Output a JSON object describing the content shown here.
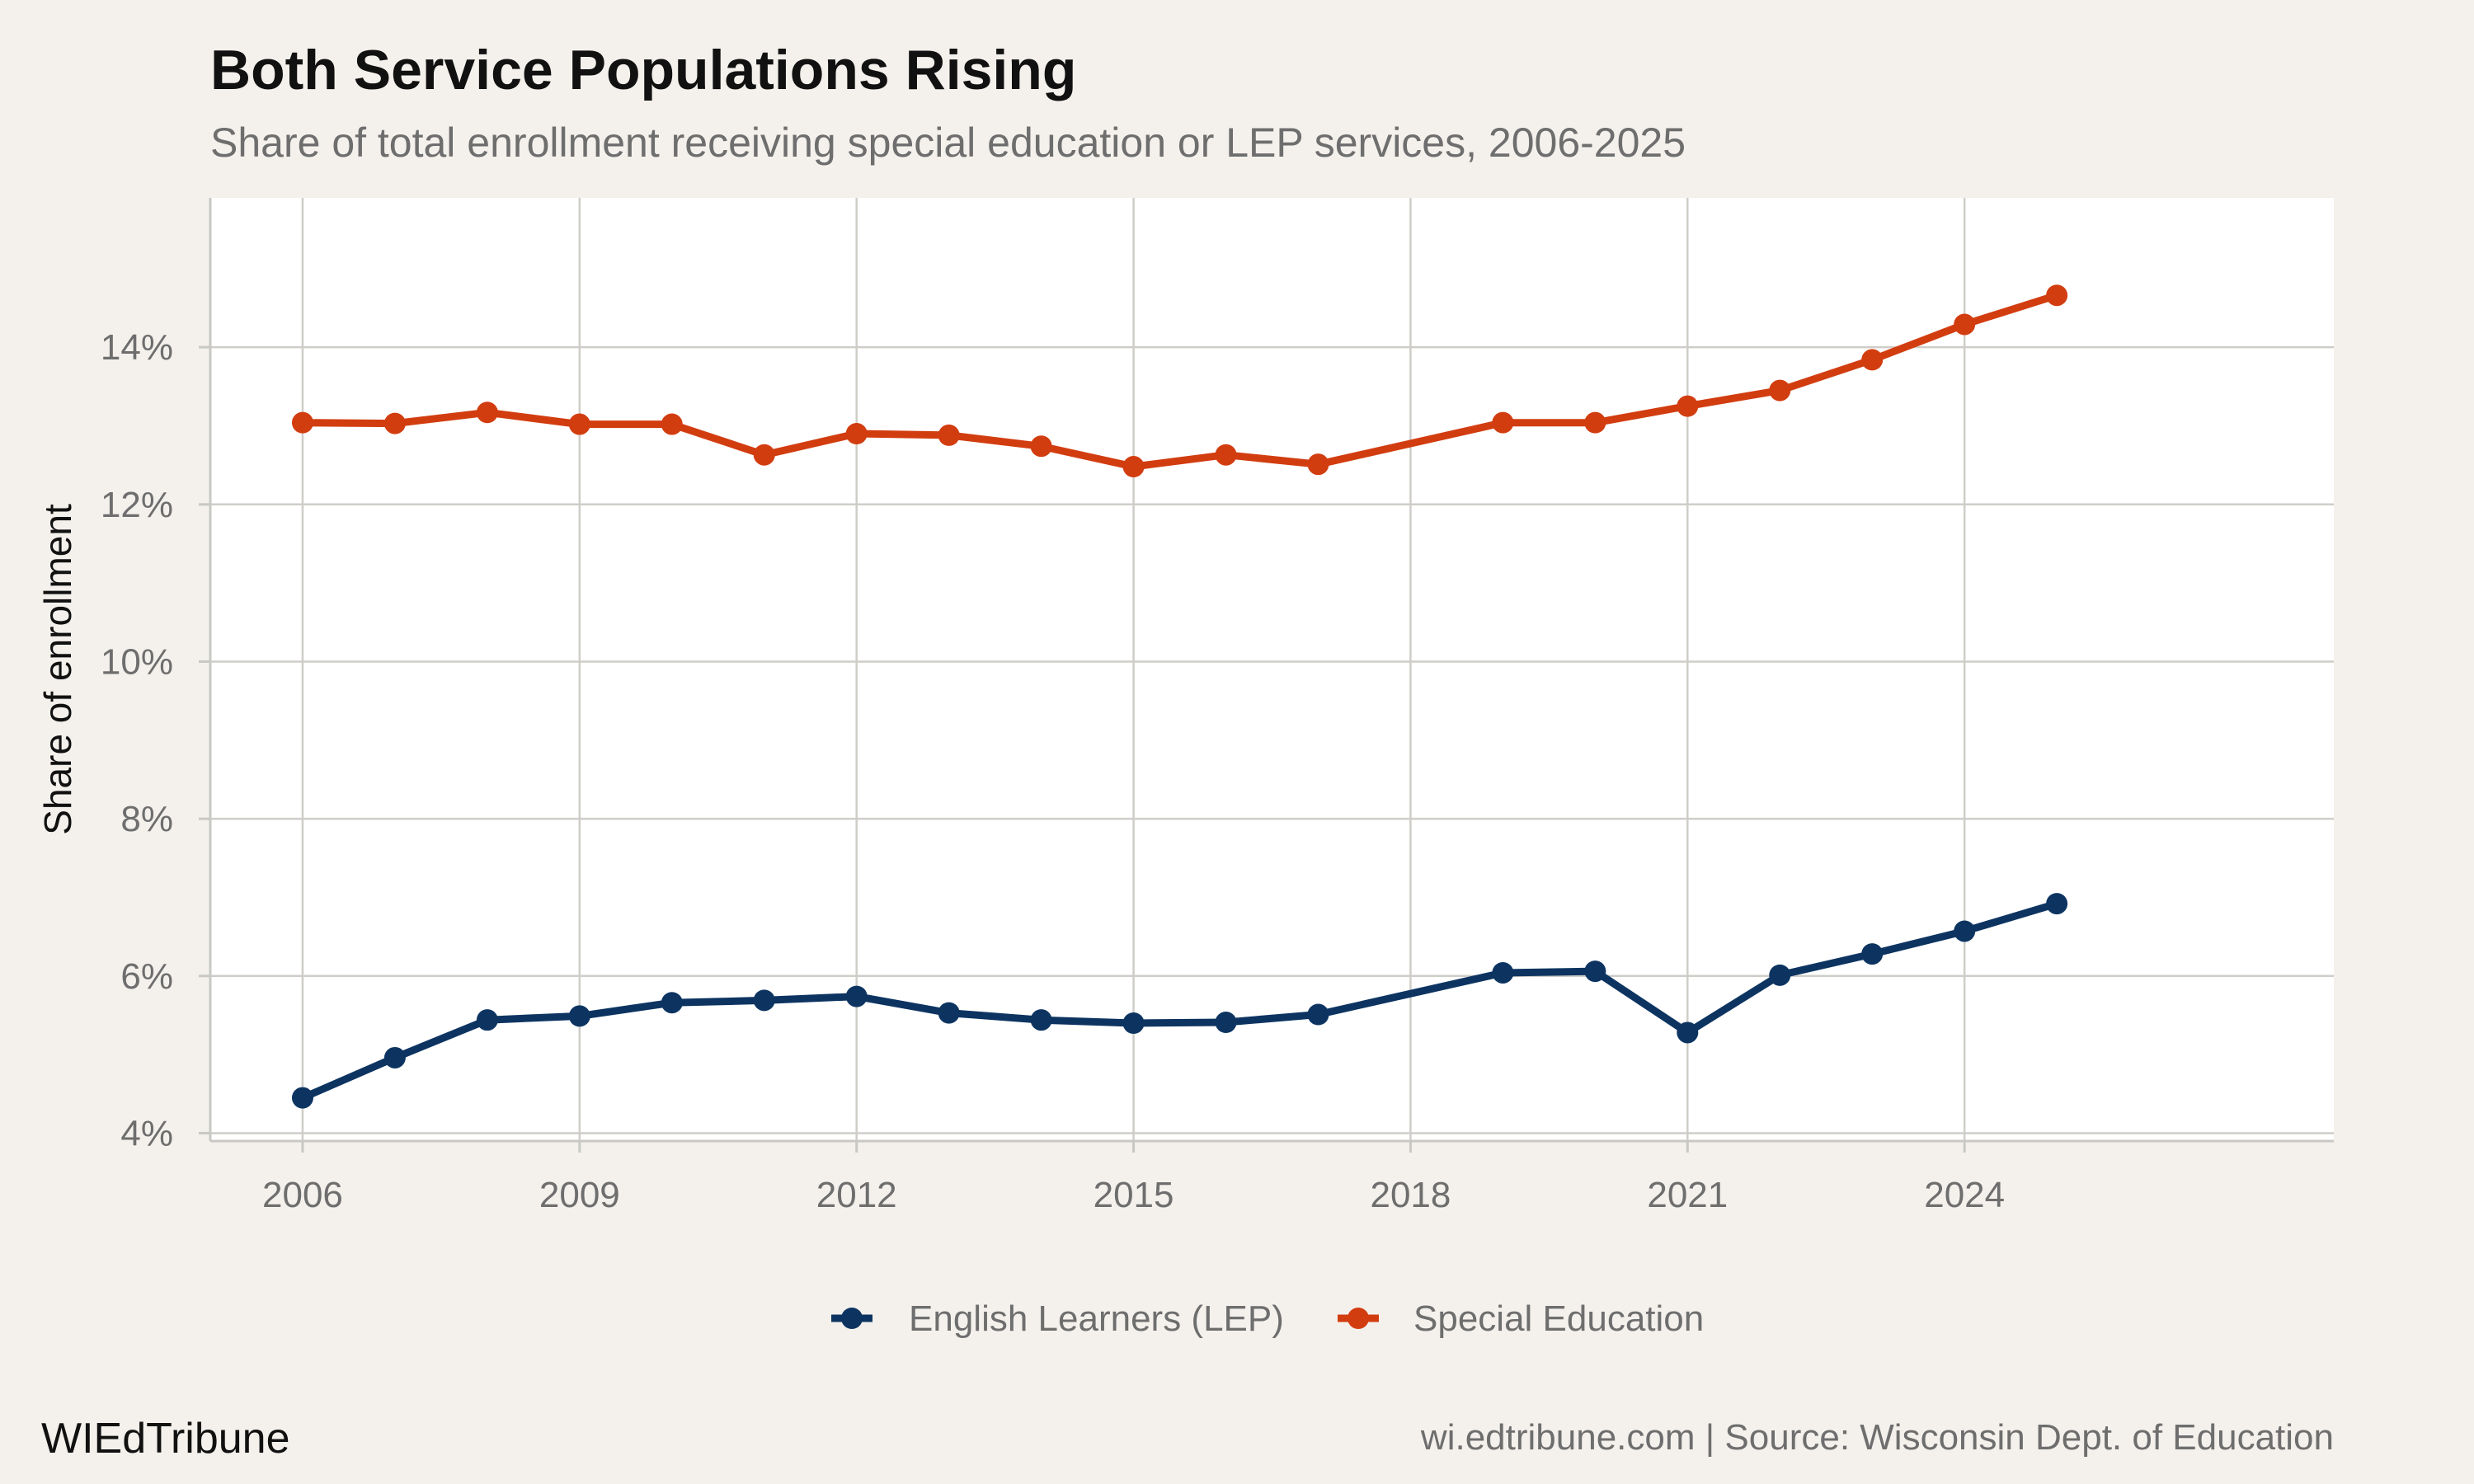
{
  "chart_data": {
    "type": "line",
    "title": "Both Service Populations Rising",
    "subtitle": "Share of total enrollment receiving special education or LEP services, 2006-2025",
    "ylabel": "Share of enrollment",
    "xlabel": "",
    "xlim": [
      2005,
      2028
    ],
    "ylim": [
      3.9,
      15.9
    ],
    "x_ticks": [
      2006,
      2009,
      2012,
      2015,
      2018,
      2021,
      2024
    ],
    "y_ticks": [
      4,
      6,
      8,
      10,
      12,
      14
    ],
    "y_tick_labels": [
      "4%",
      "6%",
      "8%",
      "10%",
      "12%",
      "14%"
    ],
    "grid": true,
    "legend_position": "bottom",
    "series": [
      {
        "name": "English Learners (LEP)",
        "color": "#0d3461",
        "x": [
          2006,
          2007,
          2008,
          2009,
          2010,
          2011,
          2012,
          2013,
          2014,
          2015,
          2016,
          2017,
          2019,
          2020,
          2021,
          2022,
          2023,
          2024,
          2025
        ],
        "values": [
          4.45,
          4.96,
          5.44,
          5.49,
          5.66,
          5.69,
          5.74,
          5.53,
          5.44,
          5.4,
          5.41,
          5.51,
          6.04,
          6.06,
          5.28,
          6.01,
          6.28,
          6.57,
          6.92
        ]
      },
      {
        "name": "Special Education",
        "color": "#d23d10",
        "x": [
          2006,
          2007,
          2008,
          2009,
          2010,
          2011,
          2012,
          2013,
          2014,
          2015,
          2016,
          2017,
          2019,
          2020,
          2021,
          2022,
          2023,
          2024,
          2025
        ],
        "values": [
          13.04,
          13.03,
          13.17,
          13.02,
          13.02,
          12.63,
          12.9,
          12.88,
          12.74,
          12.48,
          12.63,
          12.51,
          13.04,
          13.04,
          13.25,
          13.45,
          13.84,
          14.29,
          14.66
        ]
      }
    ]
  },
  "footer": {
    "brand": "WIEdTribune",
    "source": "wi.edtribune.com | Source: Wisconsin Dept. of Education"
  }
}
